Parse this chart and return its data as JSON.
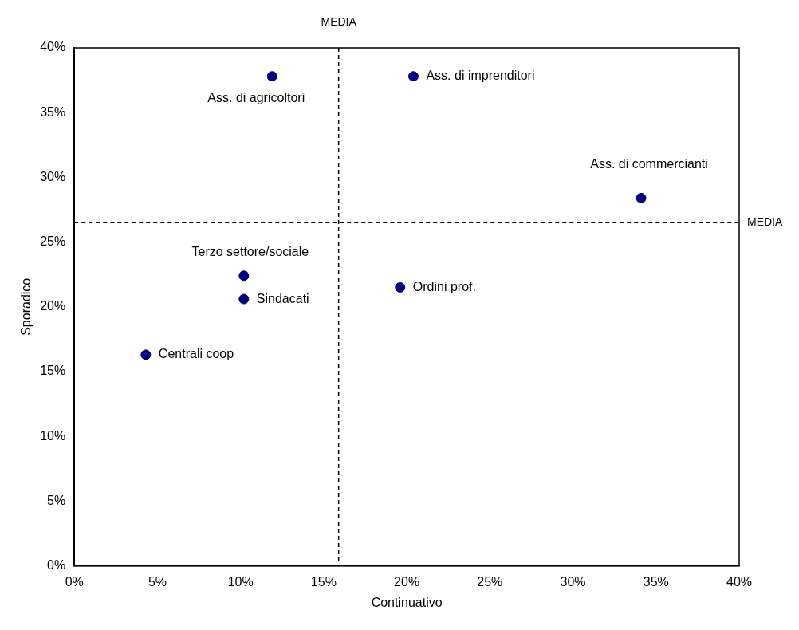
{
  "chart_data": {
    "type": "scatter",
    "xlabel": "Continuativo",
    "ylabel": "Sporadico",
    "x": [
      11.9,
      20.4,
      34.1,
      10.2,
      10.2,
      19.6,
      4.3
    ],
    "values": [
      37.8,
      37.8,
      28.4,
      22.4,
      20.6,
      21.5,
      16.3
    ],
    "color": "#000080",
    "marker": "circle",
    "grid": false,
    "legend": false,
    "xlim": [
      0,
      40
    ],
    "ylim": [
      0,
      40
    ],
    "xticks": [
      {
        "value": 0,
        "label": "0%"
      },
      {
        "value": 5,
        "label": "5%"
      },
      {
        "value": 10,
        "label": "10%"
      },
      {
        "value": 15,
        "label": "15%"
      },
      {
        "value": 20,
        "label": "20%"
      },
      {
        "value": 25,
        "label": "25%"
      },
      {
        "value": 30,
        "label": "30%"
      },
      {
        "value": 35,
        "label": "35%"
      },
      {
        "value": 40,
        "label": "40%"
      }
    ],
    "yticks": [
      {
        "value": 0,
        "label": "0%"
      },
      {
        "value": 5,
        "label": "5%"
      },
      {
        "value": 10,
        "label": "10%"
      },
      {
        "value": 15,
        "label": "15%"
      },
      {
        "value": 20,
        "label": "20%"
      },
      {
        "value": 25,
        "label": "25%"
      },
      {
        "value": 30,
        "label": "30%"
      },
      {
        "value": 35,
        "label": "35%"
      },
      {
        "value": 40,
        "label": "40%"
      }
    ],
    "ref_lines": [
      {
        "axis": "x",
        "value": 15.9,
        "label": "MEDIA",
        "line_style": "dashed",
        "color": "#000000"
      },
      {
        "axis": "y",
        "value": 26.5,
        "label": "MEDIA",
        "line_style": "dashed",
        "color": "#000000"
      }
    ],
    "annotations": [
      {
        "text": "Ass. di agricoltori",
        "x": 11.9,
        "y": 37.8
      },
      {
        "text": "Ass. di imprenditori",
        "x": 20.4,
        "y": 37.8
      },
      {
        "text": "Ass. di commercianti",
        "x": 34.1,
        "y": 28.4
      },
      {
        "text": "Terzo settore/sociale",
        "x": 10.2,
        "y": 22.4
      },
      {
        "text": "Sindacati",
        "x": 10.2,
        "y": 20.6
      },
      {
        "text": "Ordini prof.",
        "x": 19.6,
        "y": 21.5
      },
      {
        "text": "Centrali coop",
        "x": 4.3,
        "y": 16.3
      }
    ]
  }
}
